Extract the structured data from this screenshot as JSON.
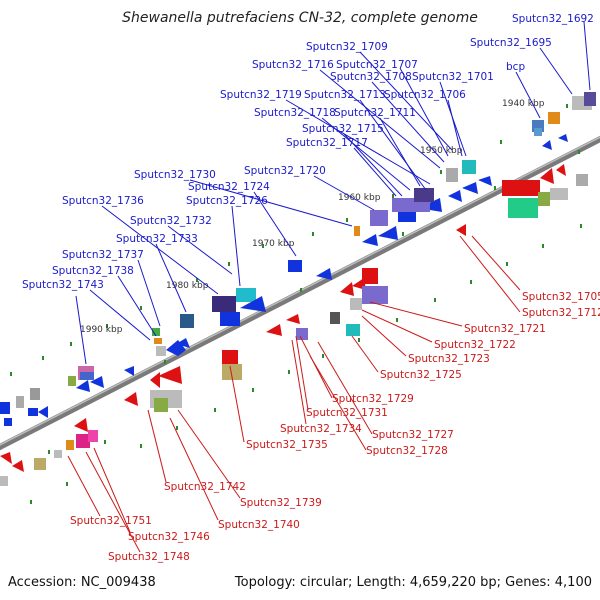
{
  "title": "Shewanella putrefaciens CN-32, complete genome",
  "footer": {
    "accession": "Accession: NC_009438",
    "summary": "Topology: circular; Length: 4,659,220 bp; Genes: 4,100"
  },
  "colors": {
    "plus_label": "#1a1acc",
    "minus_label": "#cc1a1a",
    "backbone": "#888888",
    "tick": "#2a8a2a"
  },
  "kbp_marks": [
    "1940 kbp",
    "1950 kbp",
    "1960 kbp",
    "1970 kbp",
    "1980 kbp",
    "1990 kbp"
  ],
  "plus_labels": [
    "Sputcn32_1692",
    "Sputcn32_1695",
    "Sputcn32_1709",
    "Sputcn32_1716",
    "Sputcn32_1707",
    "Sputcn32_1708",
    "Sputcn32_1701",
    "bcp",
    "Sputcn32_1719",
    "Sputcn32_1713",
    "Sputcn32_1706",
    "Sputcn32_1718",
    "Sputcn32_1711",
    "Sputcn32_1715",
    "Sputcn32_1717",
    "Sputcn32_1730",
    "Sputcn32_1720",
    "Sputcn32_1724",
    "Sputcn32_1736",
    "Sputcn32_1726",
    "Sputcn32_1732",
    "Sputcn32_1733",
    "Sputcn32_1737",
    "Sputcn32_1738",
    "Sputcn32_1743"
  ],
  "minus_labels": [
    "Sputcn32_1705",
    "Sputcn32_1712",
    "Sputcn32_1721",
    "Sputcn32_1722",
    "Sputcn32_1723",
    "Sputcn32_1725",
    "Sputcn32_1729",
    "Sputcn32_1731",
    "Sputcn32_1734",
    "Sputcn32_1727",
    "Sputcn32_1735",
    "Sputcn32_1728",
    "Sputcn32_1742",
    "Sputcn32_1739",
    "Sputcn32_1740",
    "Sputcn32_1751",
    "Sputcn32_1746",
    "Sputcn32_1748"
  ]
}
